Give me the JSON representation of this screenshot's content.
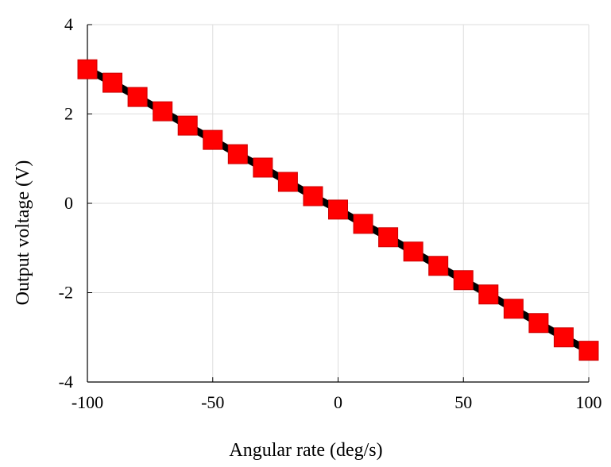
{
  "chart_data": {
    "type": "line",
    "title": "",
    "xlabel": "Angular rate (deg/s)",
    "ylabel": "Output voltage (V)",
    "xlim": [
      -100,
      100
    ],
    "ylim": [
      -4,
      4
    ],
    "xticks": [
      -100,
      -50,
      0,
      50,
      100
    ],
    "yticks": [
      -4,
      -2,
      0,
      2,
      4
    ],
    "xtick_labels": [
      "-100",
      "-50",
      "0",
      "50",
      "100"
    ],
    "ytick_labels": [
      "-4",
      "-2",
      "0",
      "2",
      "4"
    ],
    "grid": true,
    "legend": "none",
    "series": [
      {
        "x": [
          -100,
          -90,
          -80,
          -70,
          -60,
          -50,
          -40,
          -30,
          -20,
          -10,
          0,
          10,
          20,
          30,
          40,
          50,
          60,
          70,
          80,
          90,
          100
        ],
        "y": [
          3.0,
          2.7,
          2.38,
          2.06,
          1.74,
          1.42,
          1.1,
          0.8,
          0.48,
          0.16,
          -0.14,
          -0.46,
          -0.76,
          -1.08,
          -1.4,
          -1.72,
          -2.04,
          -2.36,
          -2.68,
          -3.0,
          -3.3
        ],
        "line_color": "#000000",
        "marker": "square",
        "marker_color": "#ff0000"
      }
    ]
  }
}
